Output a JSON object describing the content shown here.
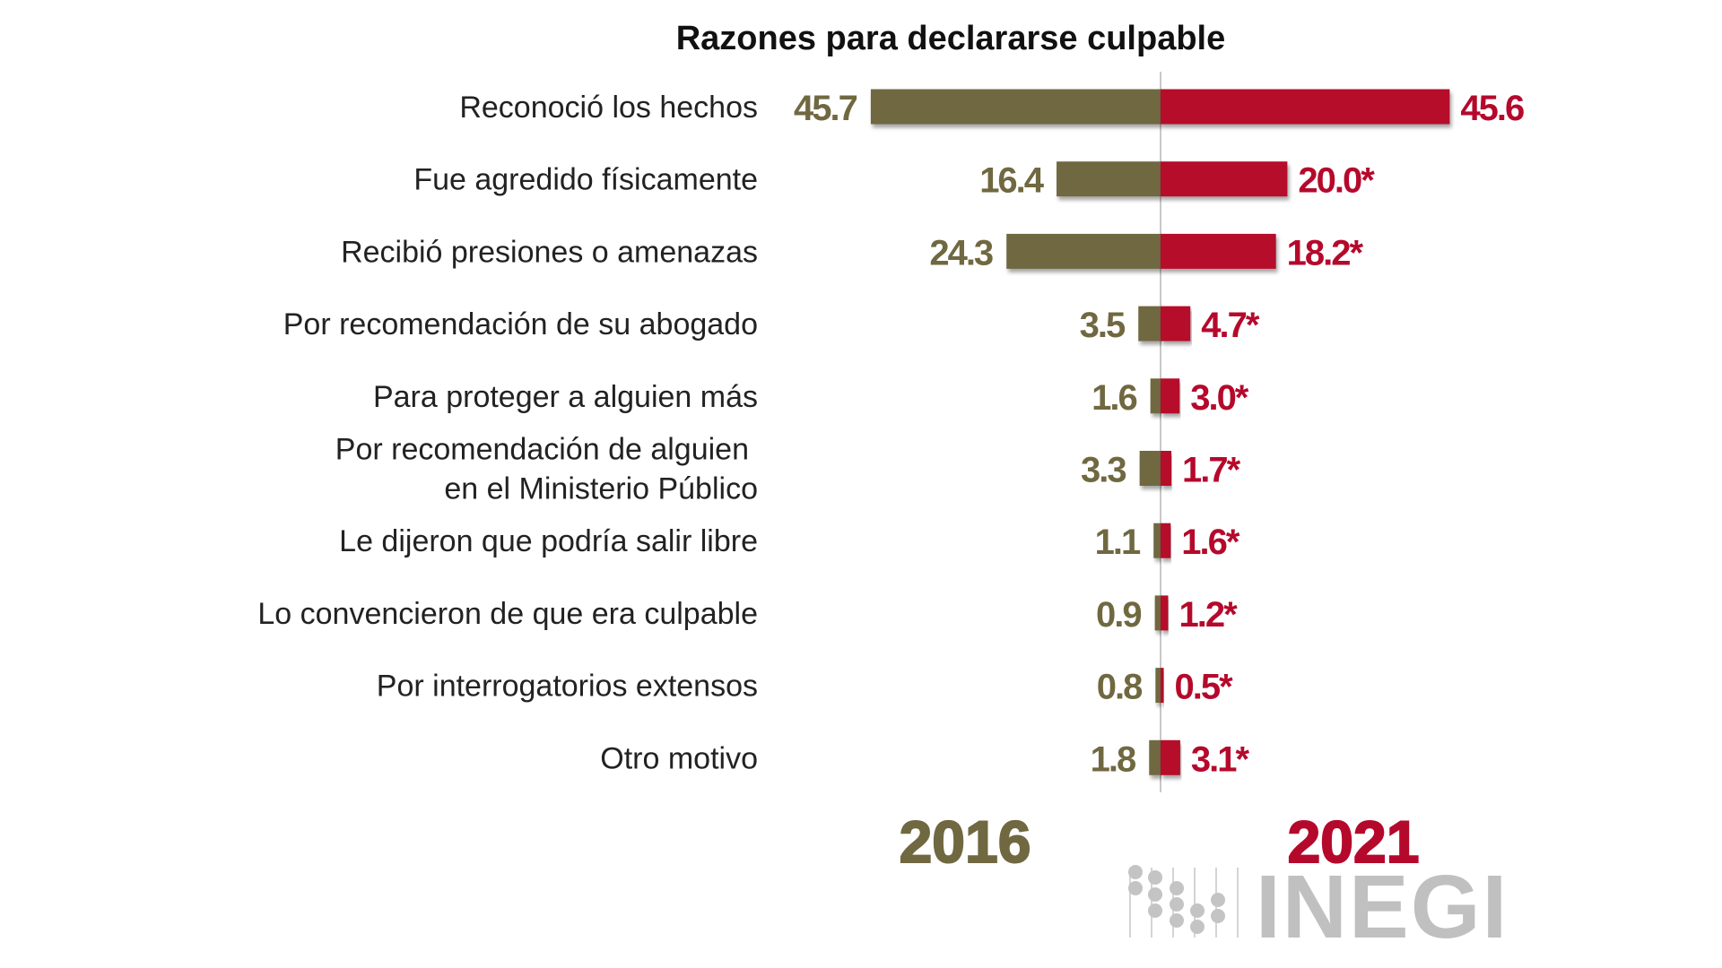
{
  "chart_data": {
    "type": "bar",
    "orientation": "horizontal-diverging",
    "title": "Razones para declararse culpable",
    "categories": [
      "Reconoció los hechos",
      "Fue agredido físicamente",
      "Recibió presiones o amenazas",
      "Por recomendación de su abogado",
      "Para proteger a alguien más",
      "Por recomendación de alguien\nen el Ministerio Público",
      "Le dijeron que podría salir libre",
      "Lo convencieron de que era culpable",
      "Por interrogatorios extensos",
      "Otro motivo"
    ],
    "series": [
      {
        "name": "2016",
        "color": "#706840",
        "side": "left",
        "values": [
          45.7,
          16.4,
          24.3,
          3.5,
          1.6,
          3.3,
          1.1,
          0.9,
          0.8,
          1.8
        ],
        "labels": [
          "45.7",
          "16.4",
          "24.3",
          "3.5",
          "1.6",
          "3.3",
          "1.1",
          "0.9",
          "0.8",
          "1.8"
        ]
      },
      {
        "name": "2021",
        "color": "#b5092c",
        "side": "right",
        "values": [
          45.6,
          20.0,
          18.2,
          4.7,
          3.0,
          1.7,
          1.6,
          1.2,
          0.5,
          3.1
        ],
        "labels": [
          "45.6",
          "20.0*",
          "18.2*",
          "4.7*",
          "3.0*",
          "1.7*",
          "1.6*",
          "1.2*",
          "0.5*",
          "3.1*"
        ]
      }
    ],
    "xlabel": "",
    "ylabel": "",
    "grid": false,
    "legend": "bottom"
  },
  "logo": {
    "text": "INEGI",
    "color": "#c0c0c0"
  }
}
